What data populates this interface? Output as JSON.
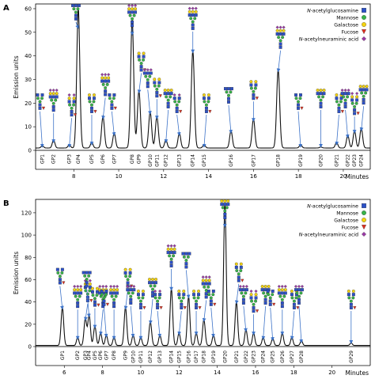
{
  "legend_items": [
    {
      "label": "N-acetylglucosamine",
      "shape": "square",
      "color": "#2b50c8"
    },
    {
      "label": "Mannose",
      "shape": "circle",
      "color": "#38b44a"
    },
    {
      "label": "Galactose",
      "shape": "circle",
      "color": "#f5d40f"
    },
    {
      "label": "Fucose",
      "shape": "triangle",
      "color": "#e03020"
    },
    {
      "label": "N-acetylneuraminic acid",
      "shape": "diamond",
      "color": "#9b3aa6"
    }
  ],
  "chart_data": [
    {
      "panel": "A",
      "type": "line",
      "xlabel": "Minutes",
      "ylabel": "Emission units",
      "xlim": [
        6.3,
        21.2
      ],
      "ylim": [
        0,
        62
      ],
      "xticks": [
        8,
        10,
        12,
        14,
        16,
        18,
        20
      ],
      "yticks": [
        0,
        10,
        20,
        30,
        40,
        50,
        60
      ],
      "baseline": 1,
      "peaks": [
        {
          "label": "GP1",
          "x": 6.6,
          "y": 1.5
        },
        {
          "label": "GP2",
          "x": 7.1,
          "y": 4
        },
        {
          "label": "GP3",
          "x": 7.8,
          "y": 2
        },
        {
          "label": "GP4",
          "x": 8.2,
          "y": 60
        },
        {
          "label": "GP5",
          "x": 8.8,
          "y": 3
        },
        {
          "label": "GP6",
          "x": 9.3,
          "y": 14
        },
        {
          "label": "GP7",
          "x": 9.8,
          "y": 7
        },
        {
          "label": "GP8",
          "x": 10.6,
          "y": 55
        },
        {
          "label": "GP9",
          "x": 10.9,
          "y": 25
        },
        {
          "label": "GP10",
          "x": 11.4,
          "y": 16
        },
        {
          "label": "GP11",
          "x": 11.7,
          "y": 14
        },
        {
          "label": "GP12",
          "x": 12.1,
          "y": 4
        },
        {
          "label": "GP13",
          "x": 12.7,
          "y": 7
        },
        {
          "label": "GP14",
          "x": 13.3,
          "y": 42
        },
        {
          "label": "GP15",
          "x": 13.8,
          "y": 2
        },
        {
          "label": "GP16",
          "x": 15.0,
          "y": 8
        },
        {
          "label": "GP17",
          "x": 16.0,
          "y": 13
        },
        {
          "label": "GP18",
          "x": 17.1,
          "y": 34
        },
        {
          "label": "GP19",
          "x": 18.1,
          "y": 2
        },
        {
          "label": "GP20",
          "x": 19.0,
          "y": 1
        },
        {
          "label": "GP21",
          "x": 19.7,
          "y": 3
        },
        {
          "label": "GP22",
          "x": 20.2,
          "y": 6
        },
        {
          "label": "GP23",
          "x": 20.5,
          "y": 8
        },
        {
          "label": "GP24",
          "x": 20.8,
          "y": 9
        }
      ]
    },
    {
      "panel": "B",
      "type": "line",
      "xlabel": "Minutes",
      "ylabel": "Emission units",
      "xlim": [
        4.5,
        22.0
      ],
      "ylim": [
        0,
        132
      ],
      "xticks": [
        6,
        8,
        10,
        12,
        14,
        16,
        18,
        20
      ],
      "yticks": [
        0,
        20,
        40,
        60,
        80,
        100,
        120
      ],
      "baseline": 1,
      "peaks": [
        {
          "label": "GP1",
          "x": 5.9,
          "y": 35
        },
        {
          "label": "GP2",
          "x": 6.7,
          "y": 8
        },
        {
          "label": "GP3",
          "x": 7.1,
          "y": 25
        },
        {
          "label": "GP4",
          "x": 7.3,
          "y": 28
        },
        {
          "label": "GP5",
          "x": 7.6,
          "y": 18
        },
        {
          "label": "GP6",
          "x": 7.9,
          "y": 12
        },
        {
          "label": "GP7",
          "x": 8.2,
          "y": 10
        },
        {
          "label": "GP8",
          "x": 8.6,
          "y": 8
        },
        {
          "label": "GP9",
          "x": 9.2,
          "y": 35
        },
        {
          "label": "GP10",
          "x": 9.6,
          "y": 10
        },
        {
          "label": "GP11",
          "x": 10.0,
          "y": 8
        },
        {
          "label": "GP12",
          "x": 10.5,
          "y": 22
        },
        {
          "label": "GP13",
          "x": 11.0,
          "y": 10
        },
        {
          "label": "GP14",
          "x": 11.6,
          "y": 52
        },
        {
          "label": "GP15",
          "x": 12.0,
          "y": 12
        },
        {
          "label": "GP16",
          "x": 12.5,
          "y": 45
        },
        {
          "label": "GP17",
          "x": 12.9,
          "y": 12
        },
        {
          "label": "GP18",
          "x": 13.3,
          "y": 24
        },
        {
          "label": "GP19",
          "x": 13.8,
          "y": 10
        },
        {
          "label": "GP20",
          "x": 14.4,
          "y": 128
        },
        {
          "label": "GP21",
          "x": 15.0,
          "y": 40
        },
        {
          "label": "GP22",
          "x": 15.5,
          "y": 15
        },
        {
          "label": "GP23",
          "x": 15.9,
          "y": 12
        },
        {
          "label": "GP24",
          "x": 16.4,
          "y": 8
        },
        {
          "label": "GP25",
          "x": 16.9,
          "y": 7
        },
        {
          "label": "GP26",
          "x": 17.4,
          "y": 12
        },
        {
          "label": "GP27",
          "x": 17.9,
          "y": 8
        },
        {
          "label": "GP28",
          "x": 18.4,
          "y": 5
        },
        {
          "label": "GP29",
          "x": 21.0,
          "y": 3
        }
      ]
    }
  ]
}
